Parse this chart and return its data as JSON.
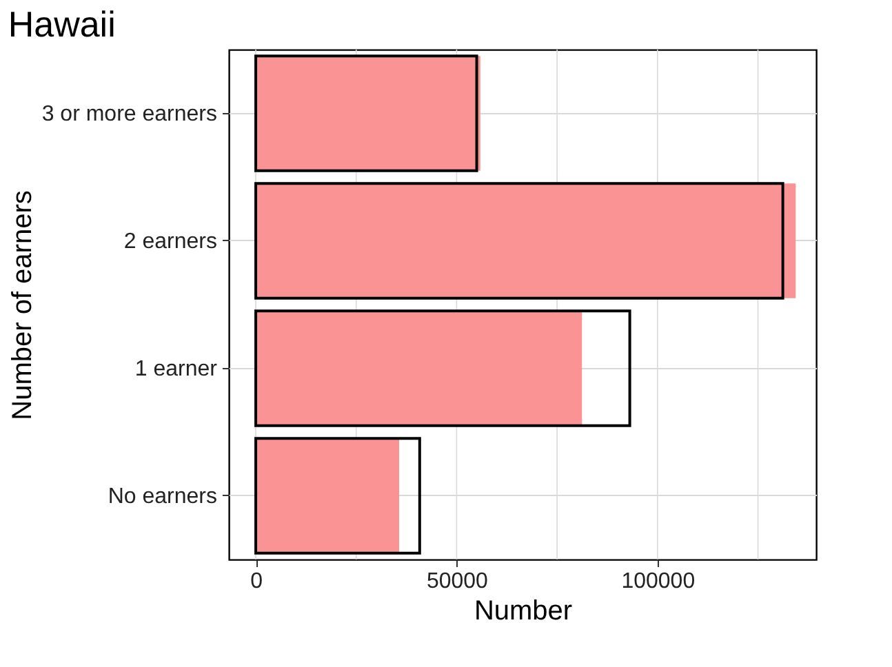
{
  "chart_data": {
    "type": "bar",
    "orientation": "horizontal",
    "title": "Hawaii",
    "xlabel": "Number",
    "ylabel": "Number of earners",
    "categories": [
      "3 or more earners",
      "2 earners",
      "1 earner",
      "No earners"
    ],
    "series": [
      {
        "color": "#f99394",
        "values": [
          55900,
          134400,
          81200,
          35700
        ]
      },
      {
        "color": "#000000",
        "values": [
          55000,
          131200,
          93100,
          40800
        ]
      }
    ],
    "xlim": [
      -6700,
      139500
    ],
    "xticks": [
      0,
      {
        "value": 25000,
        "label": null
      },
      50000,
      {
        "value": 75000,
        "label": null
      },
      100000,
      {
        "value": 125000,
        "label": null
      }
    ],
    "grid": true
  }
}
